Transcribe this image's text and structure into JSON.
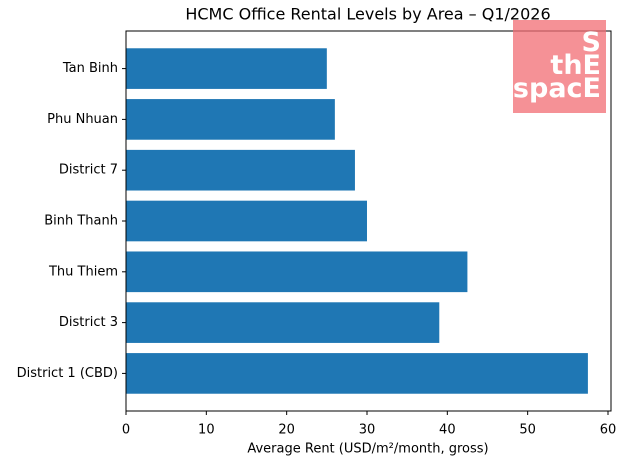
{
  "chart_data": {
    "type": "barh",
    "title": "HCMC Office Rental Levels by Area – Q1/2026",
    "xlabel": "Average Rent (USD/m²/month, gross)",
    "categories": [
      "District 1 (CBD)",
      "District 3",
      "Thu Thiem",
      "Binh Thanh",
      "District 7",
      "Phu Nhuan",
      "Tan Binh"
    ],
    "values": [
      57.5,
      39,
      42.5,
      30,
      28.5,
      26,
      25
    ],
    "color": "#1f77b4",
    "xlim": [
      0,
      60.375
    ],
    "xticks": [
      0,
      10,
      20,
      30,
      40,
      50,
      60
    ],
    "grid": false
  },
  "logo": {
    "lines": [
      "S",
      "thE",
      "spacE"
    ]
  }
}
